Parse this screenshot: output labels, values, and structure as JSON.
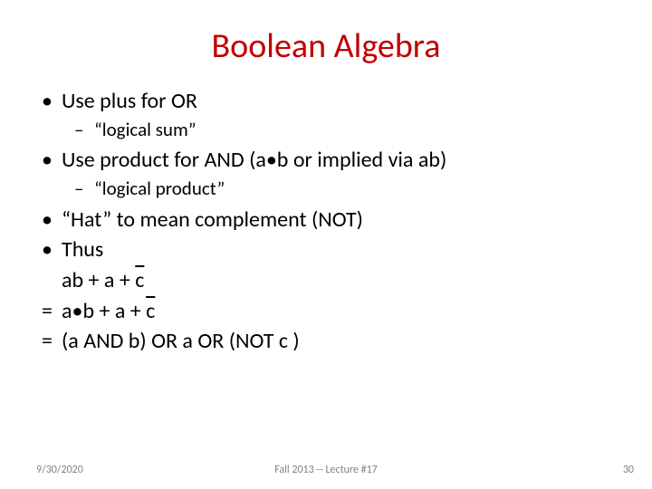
{
  "title": {
    "text": "Boolean Algebra",
    "color": "#c00000",
    "fontsize": 38
  },
  "body": {
    "fontsize": 24,
    "sub_fontsize": 21,
    "text_color": "#000000"
  },
  "items": {
    "or_main": "Use plus for OR",
    "or_sub": "“logical sum”",
    "and_main": "Use product for AND (a•b or implied via ab)",
    "and_sub": "“logical product”",
    "hat": "“Hat” to mean complement (NOT)",
    "thus": "Thus"
  },
  "equations": {
    "line1_pre": "ab + a + ",
    "line1_bar": "c",
    "line2_pre": "a•b + a + ",
    "line2_bar": "c",
    "line3": "(a AND b) OR a OR (NOT c )"
  },
  "footer": {
    "date": "9/30/2020",
    "center": "Fall 2013 -- Lecture #17",
    "page": "30",
    "color": "#808080",
    "fontsize": 12
  },
  "bullets": {
    "lvl1": "•",
    "lvl2": "–",
    "eq": "="
  }
}
